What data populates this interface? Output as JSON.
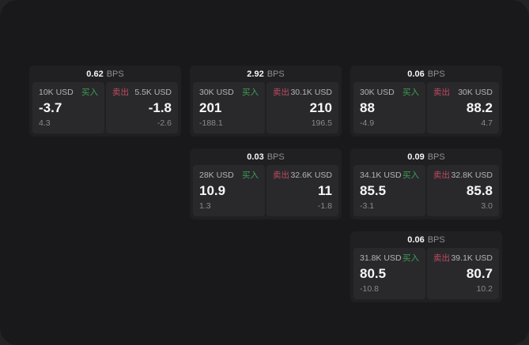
{
  "page": {
    "bg_outer": "#232325",
    "bg_panel": "#19191b",
    "card_bg": "#202023",
    "pane_bg": "#29292c",
    "buy_color": "#3f9e54",
    "sell_color": "#c04a60"
  },
  "labels": {
    "bps": "BPS",
    "buy": "买入",
    "sell": "卖出"
  },
  "cards": [
    {
      "bps": "0.62",
      "buy": {
        "amount": "10K USD",
        "main": "-3.7",
        "sub": "4.3"
      },
      "sell": {
        "amount": "5.5K USD",
        "main": "-1.8",
        "sub": "-2.6"
      }
    },
    {
      "bps": "2.92",
      "buy": {
        "amount": "30K USD",
        "main": "201",
        "sub": "-188.1"
      },
      "sell": {
        "amount": "30.1K USD",
        "main": "210",
        "sub": "196.5"
      }
    },
    {
      "bps": "0.06",
      "buy": {
        "amount": "30K USD",
        "main": "88",
        "sub": "-4.9"
      },
      "sell": {
        "amount": "30K USD",
        "main": "88.2",
        "sub": "4.7"
      }
    },
    {
      "bps": "0.03",
      "buy": {
        "amount": "28K USD",
        "main": "10.9",
        "sub": "1.3"
      },
      "sell": {
        "amount": "32.6K USD",
        "main": "11",
        "sub": "-1.8"
      }
    },
    {
      "bps": "0.09",
      "buy": {
        "amount": "34.1K USD",
        "main": "85.5",
        "sub": "-3.1"
      },
      "sell": {
        "amount": "32.8K USD",
        "main": "85.8",
        "sub": "3.0"
      }
    },
    {
      "bps": "0.06",
      "buy": {
        "amount": "31.8K USD",
        "main": "80.5",
        "sub": "-10.8"
      },
      "sell": {
        "amount": "39.1K USD",
        "main": "80.7",
        "sub": "10.2"
      }
    }
  ]
}
